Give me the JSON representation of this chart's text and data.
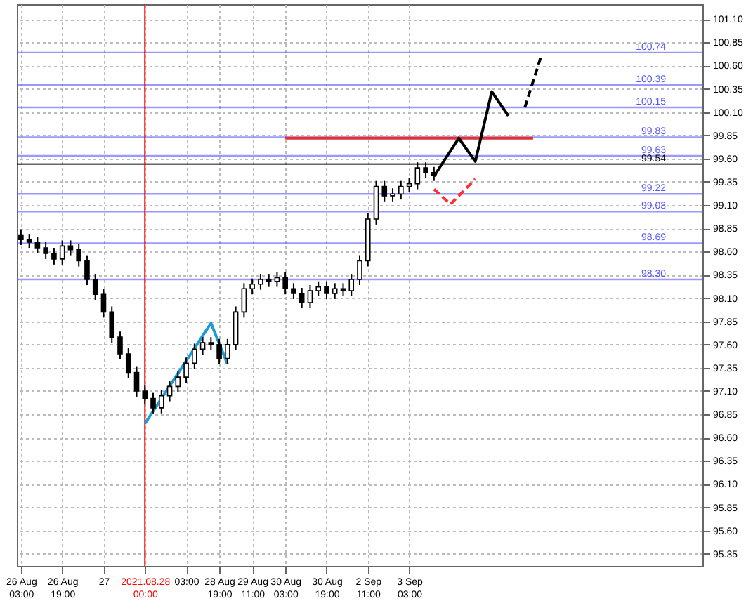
{
  "chart_data": {
    "type": "candlestick",
    "color": "#000000",
    "categories": [
      "26 Aug 03:00",
      null,
      null,
      null,
      null,
      "26 Aug 19:00",
      null,
      null,
      null,
      null,
      "27",
      null,
      null,
      null,
      null,
      "2021.08.28 00:00",
      null,
      null,
      null,
      null,
      "03:00",
      null,
      null,
      null,
      "28 Aug 19:00",
      null,
      null,
      null,
      "29 Aug 11:00",
      null,
      null,
      null,
      "30 Aug 03:00",
      null,
      null,
      null,
      null,
      "30 Aug 19:00",
      null,
      null,
      null,
      null,
      "2 Sep 11:00",
      null,
      null,
      null,
      null,
      "3 Sep 03:00",
      null,
      null,
      null,
      null,
      null,
      null,
      null,
      null,
      null,
      null,
      null,
      null,
      null,
      null,
      null,
      null,
      null,
      null,
      null,
      null,
      null,
      null,
      null,
      null,
      null,
      null,
      null,
      null,
      null,
      null,
      null,
      null,
      null,
      null,
      null
    ],
    "ohlc": [
      [
        98.78,
        98.84,
        98.67,
        98.73
      ],
      [
        98.73,
        98.79,
        98.64,
        98.7
      ],
      [
        98.7,
        98.76,
        98.58,
        98.64
      ],
      [
        98.64,
        98.7,
        98.52,
        98.58
      ],
      [
        98.58,
        98.64,
        98.46,
        98.52
      ],
      [
        98.52,
        98.72,
        98.46,
        98.66
      ],
      [
        98.66,
        98.72,
        98.56,
        98.62
      ],
      [
        98.62,
        98.68,
        98.44,
        98.5
      ],
      [
        98.5,
        98.56,
        98.24,
        98.3
      ],
      [
        98.3,
        98.36,
        98.08,
        98.14
      ],
      [
        98.14,
        98.2,
        97.89,
        97.95
      ],
      [
        97.95,
        98.01,
        97.62,
        97.68
      ],
      [
        97.68,
        97.74,
        97.44,
        97.5
      ],
      [
        97.5,
        97.56,
        97.24,
        97.3
      ],
      [
        97.3,
        97.36,
        97.04,
        97.1
      ],
      [
        97.1,
        97.16,
        96.96,
        97.02
      ],
      [
        97.02,
        97.08,
        96.86,
        96.92
      ],
      [
        96.92,
        97.11,
        96.86,
        97.05
      ],
      [
        97.05,
        97.21,
        96.99,
        97.15
      ],
      [
        97.15,
        97.31,
        97.09,
        97.25
      ],
      [
        97.25,
        97.46,
        97.19,
        97.4
      ],
      [
        97.4,
        97.61,
        97.34,
        97.55
      ],
      [
        97.55,
        97.68,
        97.49,
        97.62
      ],
      [
        97.62,
        97.68,
        97.54,
        97.6
      ],
      [
        97.6,
        97.66,
        97.39,
        97.45
      ],
      [
        97.45,
        97.66,
        97.39,
        97.6
      ],
      [
        97.6,
        98.01,
        97.54,
        97.95
      ],
      [
        97.95,
        98.26,
        97.89,
        98.2
      ],
      [
        98.2,
        98.31,
        98.14,
        98.25
      ],
      [
        98.25,
        98.36,
        98.19,
        98.3
      ],
      [
        98.3,
        98.36,
        98.22,
        98.28
      ],
      [
        98.28,
        98.38,
        98.22,
        98.32
      ],
      [
        98.32,
        98.38,
        98.14,
        98.2
      ],
      [
        98.2,
        98.26,
        98.09,
        98.15
      ],
      [
        98.15,
        98.21,
        97.99,
        98.05
      ],
      [
        98.05,
        98.24,
        97.99,
        98.18
      ],
      [
        98.18,
        98.28,
        98.12,
        98.22
      ],
      [
        98.22,
        98.28,
        98.09,
        98.15
      ],
      [
        98.15,
        98.26,
        98.09,
        98.2
      ],
      [
        98.2,
        98.26,
        98.12,
        98.18
      ],
      [
        98.18,
        98.36,
        98.12,
        98.3
      ],
      [
        98.3,
        98.56,
        98.24,
        98.5
      ],
      [
        98.5,
        99.01,
        98.44,
        98.95
      ],
      [
        98.95,
        99.36,
        98.89,
        99.3
      ],
      [
        99.3,
        99.36,
        99.14,
        99.2
      ],
      [
        99.2,
        99.28,
        99.14,
        99.22
      ],
      [
        99.22,
        99.36,
        99.16,
        99.3
      ],
      [
        99.3,
        99.39,
        99.24,
        99.33
      ],
      [
        99.33,
        99.56,
        99.27,
        99.5
      ],
      [
        99.5,
        99.56,
        99.39,
        99.45
      ],
      [
        99.45,
        99.51,
        99.36,
        99.42
      ],
      null,
      null,
      null,
      null,
      null,
      null,
      null,
      null,
      null,
      null,
      null,
      null,
      null,
      null,
      null,
      null,
      null,
      null,
      null,
      null,
      null,
      null,
      null,
      null,
      null,
      null,
      null,
      null,
      null,
      null,
      null,
      null
    ],
    "series": [
      {
        "type": "line",
        "color": "#1e9bd7",
        "line_style": "solid",
        "values": [
          null,
          null,
          null,
          null,
          null,
          null,
          null,
          null,
          null,
          null,
          null,
          null,
          null,
          null,
          null,
          96.75,
          null,
          null,
          null,
          null,
          null,
          null,
          null,
          97.83,
          null,
          97.39,
          null,
          null,
          null,
          null,
          null,
          null,
          null,
          null,
          null,
          null,
          null,
          null,
          null,
          null,
          null,
          null,
          null,
          null,
          null,
          null,
          null,
          null,
          null,
          null,
          null,
          null,
          null,
          null,
          null,
          null,
          null,
          null,
          null,
          null,
          null,
          null,
          null,
          null,
          null,
          null,
          null,
          null,
          null,
          null,
          null,
          null,
          null,
          null,
          null,
          null,
          null,
          null,
          null,
          null,
          null,
          null,
          null
        ]
      },
      {
        "type": "line",
        "color": "#e53030",
        "line_style": "solid",
        "values": [
          null,
          null,
          null,
          null,
          null,
          null,
          null,
          null,
          null,
          null,
          null,
          null,
          null,
          null,
          null,
          null,
          null,
          null,
          null,
          null,
          null,
          null,
          null,
          null,
          null,
          null,
          null,
          null,
          null,
          null,
          null,
          null,
          99.82,
          null,
          null,
          null,
          null,
          null,
          null,
          null,
          null,
          null,
          null,
          null,
          null,
          null,
          null,
          null,
          null,
          null,
          null,
          null,
          null,
          null,
          null,
          null,
          null,
          null,
          null,
          null,
          null,
          null,
          99.82,
          null,
          null,
          null,
          null,
          null,
          null,
          null,
          null,
          null,
          null,
          null,
          null,
          null,
          null,
          null,
          null,
          null,
          null,
          null,
          null
        ]
      },
      {
        "type": "line",
        "color": "#000000",
        "line_style": "solid",
        "values": [
          null,
          null,
          null,
          null,
          null,
          null,
          null,
          null,
          null,
          null,
          null,
          null,
          null,
          null,
          null,
          null,
          null,
          null,
          null,
          null,
          null,
          null,
          null,
          null,
          null,
          null,
          null,
          null,
          null,
          null,
          null,
          null,
          null,
          null,
          null,
          null,
          null,
          null,
          null,
          null,
          null,
          null,
          null,
          null,
          null,
          null,
          null,
          null,
          null,
          null,
          99.41,
          null,
          null,
          99.82,
          null,
          99.57,
          null,
          100.32,
          null,
          100.06,
          null,
          null,
          null,
          null,
          null,
          null,
          null,
          null,
          null,
          null,
          null,
          null,
          null,
          null,
          null,
          null,
          null,
          null,
          null,
          null,
          null,
          null,
          null
        ]
      },
      {
        "type": "line",
        "color": "#000000",
        "line_style": "dashed",
        "values": [
          null,
          null,
          null,
          null,
          null,
          null,
          null,
          null,
          null,
          null,
          null,
          null,
          null,
          null,
          null,
          null,
          null,
          null,
          null,
          null,
          null,
          null,
          null,
          null,
          null,
          null,
          null,
          null,
          null,
          null,
          null,
          null,
          null,
          null,
          null,
          null,
          null,
          null,
          null,
          null,
          null,
          null,
          null,
          null,
          null,
          null,
          null,
          null,
          null,
          null,
          null,
          null,
          null,
          null,
          null,
          null,
          null,
          null,
          null,
          null,
          null,
          100.15,
          null,
          100.71,
          null,
          null,
          null,
          null,
          null,
          null,
          null,
          null,
          null,
          null,
          null,
          null,
          null,
          null,
          null,
          null,
          null,
          null,
          null
        ]
      },
      {
        "type": "line",
        "color": "#ff3030",
        "line_style": "dashed",
        "values": [
          null,
          null,
          null,
          null,
          null,
          null,
          null,
          null,
          null,
          null,
          null,
          null,
          null,
          null,
          null,
          null,
          null,
          null,
          null,
          null,
          null,
          null,
          null,
          null,
          null,
          null,
          null,
          null,
          null,
          null,
          null,
          null,
          null,
          null,
          null,
          null,
          null,
          null,
          null,
          null,
          null,
          null,
          null,
          null,
          null,
          null,
          null,
          null,
          null,
          null,
          99.27,
          null,
          99.11,
          99.2,
          null,
          99.38,
          null,
          null,
          null,
          null,
          null,
          null,
          null,
          null,
          null,
          null,
          null,
          null,
          null,
          null,
          null,
          null,
          null,
          null,
          null,
          null,
          null,
          null,
          null,
          null,
          null,
          null,
          null
        ]
      }
    ],
    "ylim": [
      95.22,
      101.26
    ],
    "yticks": [
      {
        "value": 95.35,
        "label": "95.35"
      },
      {
        "value": 95.6,
        "label": "95.60"
      },
      {
        "value": 95.85,
        "label": "95.85"
      },
      {
        "value": 96.1,
        "label": "96.10"
      },
      {
        "value": 96.35,
        "label": "96.35"
      },
      {
        "value": 96.6,
        "label": "96.60"
      },
      {
        "value": 96.85,
        "label": "96.85"
      },
      {
        "value": 97.1,
        "label": "97.10"
      },
      {
        "value": 97.35,
        "label": "97.35"
      },
      {
        "value": 97.6,
        "label": "97.60"
      },
      {
        "value": 97.85,
        "label": "97.85"
      },
      {
        "value": 98.1,
        "label": "98.10"
      },
      {
        "value": 98.35,
        "label": "98.35"
      },
      {
        "value": 98.6,
        "label": "98.60"
      },
      {
        "value": 98.85,
        "label": "98.85"
      },
      {
        "value": 99.1,
        "label": "99.10"
      },
      {
        "value": 99.35,
        "label": "99.35"
      },
      {
        "value": 99.6,
        "label": "99.60"
      },
      {
        "value": 99.85,
        "label": "99.85"
      },
      {
        "value": 100.1,
        "label": "100.10"
      },
      {
        "value": 100.35,
        "label": "100.35"
      },
      {
        "value": 100.6,
        "label": "100.60"
      },
      {
        "value": 100.85,
        "label": "100.85"
      },
      {
        "value": 101.1,
        "label": "101.10"
      }
    ],
    "ref_lines": [
      {
        "axis": "y",
        "value": 100.74,
        "label": "100.74",
        "color": "#5555ff"
      },
      {
        "axis": "y",
        "value": 100.39,
        "label": "100.39",
        "color": "#5555ff"
      },
      {
        "axis": "y",
        "value": 100.15,
        "label": "100.15",
        "color": "#5555ff"
      },
      {
        "axis": "y",
        "value": 99.83,
        "label": "99.83",
        "color": "#5555ff"
      },
      {
        "axis": "y",
        "value": 99.63,
        "label": "99.63",
        "color": "#5555ff"
      },
      {
        "axis": "y",
        "value": 99.54,
        "label": "99.54",
        "color": "#000000"
      },
      {
        "axis": "y",
        "value": 99.22,
        "label": "99.22",
        "color": "#5555ff"
      },
      {
        "axis": "y",
        "value": 99.03,
        "label": "99.03",
        "color": "#5555ff"
      },
      {
        "axis": "y",
        "value": 98.69,
        "label": "98.69",
        "color": "#5555ff"
      },
      {
        "axis": "y",
        "value": 98.3,
        "label": "98.30",
        "color": "#5555ff"
      },
      {
        "axis": "x",
        "value": "2021.08.28 00:00",
        "color": "#ff0000"
      }
    ],
    "grid": true
  }
}
